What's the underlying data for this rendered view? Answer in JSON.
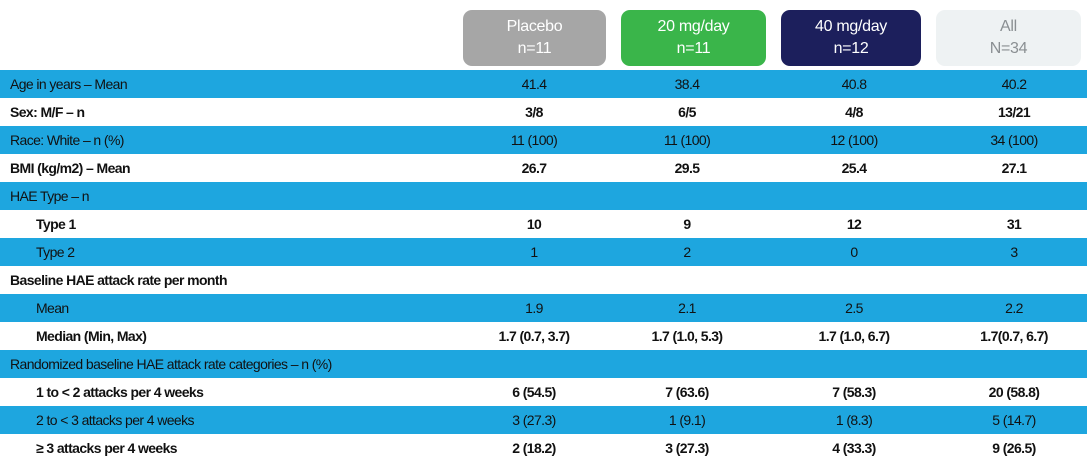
{
  "table": {
    "columns": [
      {
        "name": "Placebo",
        "n": "n=11"
      },
      {
        "name": "20 mg/day",
        "n": "n=11"
      },
      {
        "name": "40 mg/day",
        "n": "n=12"
      },
      {
        "name": "All",
        "n": "N=34"
      }
    ],
    "rows": [
      {
        "label": "Age in years – Mean",
        "values": [
          "41.4",
          "38.4",
          "40.8",
          "40.2"
        ]
      },
      {
        "label": "Sex: M/F – n",
        "values": [
          "3/8",
          "6/5",
          "4/8",
          "13/21"
        ]
      },
      {
        "label": "Race: White – n (%)",
        "values": [
          "11 (100)",
          "11 (100)",
          "12 (100)",
          "34 (100)"
        ]
      },
      {
        "label": "BMI (kg/m2) – Mean",
        "values": [
          "26.7",
          "29.5",
          "25.4",
          "27.1"
        ]
      },
      {
        "label": "HAE Type – n",
        "rows": [
          {
            "label": "Type 1",
            "values": [
              "10",
              "9",
              "12",
              "31"
            ]
          },
          {
            "label": "Type 2",
            "values": [
              "1",
              "2",
              "0",
              "3"
            ]
          }
        ]
      },
      {
        "label": "Baseline HAE attack rate per month",
        "rows": [
          {
            "label": "Mean",
            "values": [
              "1.9",
              "2.1",
              "2.5",
              "2.2"
            ]
          },
          {
            "label": "Median (Min, Max)",
            "values": [
              "1.7 (0.7, 3.7)",
              "1.7 (1.0, 5.3)",
              "1.7 (1.0, 6.7)",
              "1.7(0.7, 6.7)"
            ]
          }
        ]
      },
      {
        "label": "Randomized baseline HAE attack rate categories – n (%)",
        "rows": [
          {
            "label": "1 to < 2 attacks per 4 weeks",
            "values": [
              "6 (54.5)",
              "7 (63.6)",
              "7 (58.3)",
              "20 (58.8)"
            ]
          },
          {
            "label": "2 to < 3 attacks per 4 weeks",
            "values": [
              "3 (27.3)",
              "1 (9.1)",
              "1 (8.3)",
              "5 (14.7)"
            ]
          },
          {
            "label": "≥ 3 attacks per 4 weeks",
            "values": [
              "2 (18.2)",
              "3 (27.3)",
              "4 (33.3)",
              "9 (26.5)"
            ]
          }
        ]
      }
    ]
  }
}
